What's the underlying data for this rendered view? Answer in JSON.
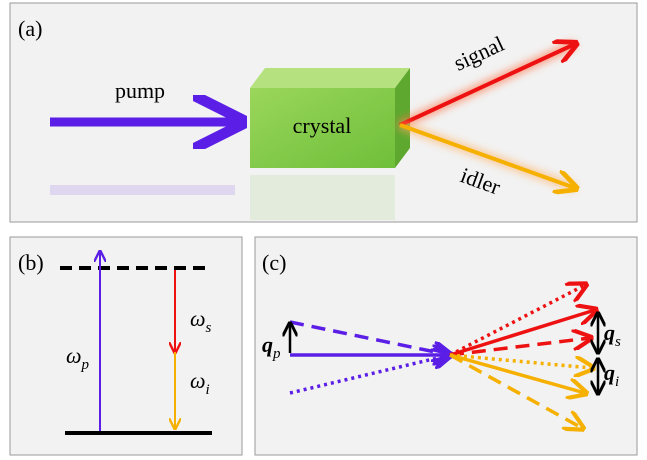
{
  "panel_a": {
    "label": "(a)",
    "pump": "pump",
    "crystal": "crystal",
    "signal": "signal",
    "idler": "idler"
  },
  "panel_b": {
    "label": "(b)",
    "omega_p": {
      "symbol": "ω",
      "sub": "p"
    },
    "omega_s": {
      "symbol": "ω",
      "sub": "s"
    },
    "omega_i": {
      "symbol": "ω",
      "sub": "i"
    }
  },
  "panel_c": {
    "label": "(c)",
    "q_p": {
      "symbol": "q",
      "sub": "p"
    },
    "q_s": {
      "symbol": "q",
      "sub": "s"
    },
    "q_i": {
      "symbol": "q",
      "sub": "i"
    }
  }
}
